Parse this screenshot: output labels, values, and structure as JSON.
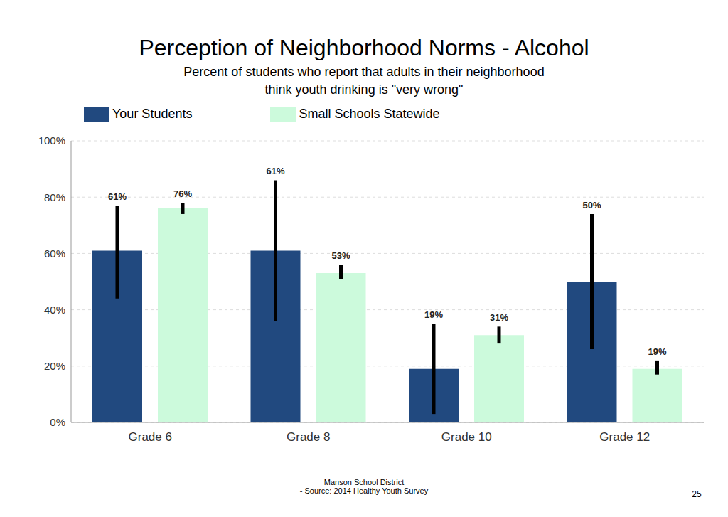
{
  "chart_data": {
    "type": "bar",
    "title": "Perception of Neighborhood Norms - Alcohol",
    "subtitle": [
      "Percent of students who report that adults in their neighborhood",
      "think youth drinking is \"very wrong\""
    ],
    "categories": [
      "Grade 6",
      "Grade 8",
      "Grade 10",
      "Grade 12"
    ],
    "series": [
      {
        "name": "Your Students",
        "color": "#21497f",
        "values": [
          61,
          61,
          19,
          50
        ],
        "value_labels": [
          "61%",
          "61%",
          "19%",
          "50%"
        ],
        "error": [
          [
            17,
            16
          ],
          [
            25,
            25
          ],
          [
            16,
            16
          ],
          [
            24,
            24
          ]
        ]
      },
      {
        "name": "Small Schools Statewide",
        "color": "#ccfadc",
        "values": [
          76,
          53,
          31,
          19
        ],
        "value_labels": [
          "76%",
          "53%",
          "31%",
          "19%"
        ],
        "error": [
          [
            2,
            2
          ],
          [
            2,
            3
          ],
          [
            3,
            3
          ],
          [
            2,
            3
          ]
        ]
      }
    ],
    "ylim": [
      0,
      100
    ],
    "yticks": [
      {
        "value": 0,
        "label": "0%"
      },
      {
        "value": 20,
        "label": "20%"
      },
      {
        "value": 40,
        "label": "40%"
      },
      {
        "value": 60,
        "label": "60%"
      },
      {
        "value": 80,
        "label": "80%"
      },
      {
        "value": 100,
        "label": "100%"
      }
    ],
    "grid": true,
    "legend": "top",
    "data_labels": true,
    "footer": [
      "Manson School District",
      "- Source: 2014 Healthy Youth Survey"
    ],
    "page_number": "25"
  }
}
